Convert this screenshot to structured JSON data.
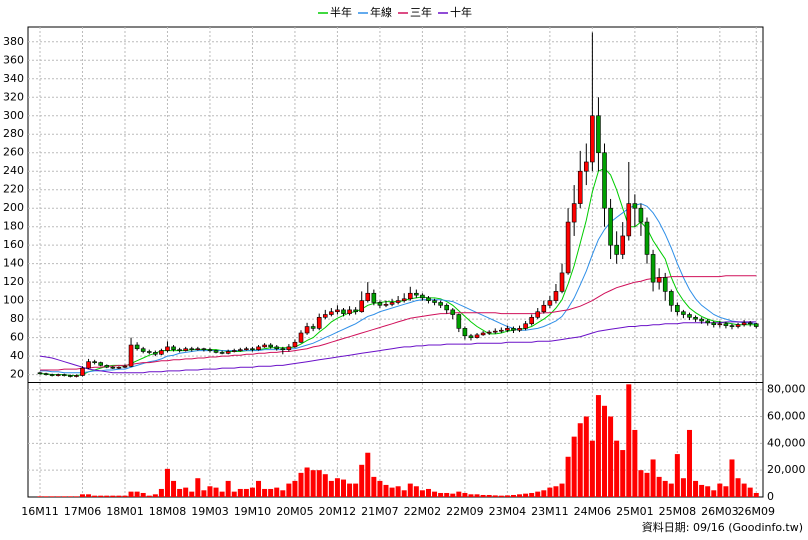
{
  "chart_data": {
    "type": "candlestick",
    "categories": [
      "16M11",
      null,
      null,
      null,
      null,
      null,
      null,
      "17M06",
      null,
      null,
      null,
      null,
      null,
      null,
      "18M01",
      null,
      null,
      null,
      null,
      null,
      null,
      "18M08",
      null,
      null,
      null,
      null,
      null,
      null,
      "19M03",
      null,
      null,
      null,
      null,
      null,
      null,
      "19M10",
      null,
      null,
      null,
      null,
      null,
      null,
      "20M05",
      null,
      null,
      null,
      null,
      null,
      null,
      "20M12",
      null,
      null,
      null,
      null,
      null,
      null,
      "21M07",
      null,
      null,
      null,
      null,
      null,
      null,
      "22M02",
      null,
      null,
      null,
      null,
      null,
      null,
      "22M09",
      null,
      null,
      null,
      null,
      null,
      null,
      "23M04",
      null,
      null,
      null,
      null,
      null,
      null,
      "23M11",
      null,
      null,
      null,
      null,
      null,
      null,
      "24M06",
      null,
      null,
      null,
      null,
      null,
      null,
      "25M01",
      null,
      null,
      null,
      null,
      null,
      null,
      "25M08",
      null,
      null,
      null,
      null,
      null,
      null,
      "26M03",
      null,
      null,
      null,
      null,
      null,
      "26M09"
    ],
    "open": [
      22,
      21,
      20,
      19,
      20,
      19,
      18,
      19,
      27,
      34,
      33,
      30,
      28,
      27,
      28,
      29,
      52,
      48,
      45,
      44,
      42,
      46,
      50,
      47,
      46,
      48,
      47,
      48,
      47,
      46,
      44,
      43,
      45,
      46,
      47,
      48,
      47,
      50,
      52,
      50,
      48,
      47,
      50,
      55,
      65,
      72,
      70,
      82,
      85,
      88,
      90,
      86,
      90,
      88,
      100,
      108,
      98,
      95,
      96,
      98,
      100,
      102,
      108,
      106,
      103,
      100,
      98,
      95,
      90,
      85,
      70,
      62,
      60,
      63,
      65,
      66,
      67,
      68,
      70,
      68,
      70,
      75,
      82,
      88,
      95,
      100,
      110,
      130,
      185,
      205,
      240,
      250,
      300,
      260,
      200,
      160,
      150,
      170,
      205,
      200,
      185,
      150,
      120,
      125,
      110,
      95,
      88,
      85,
      82,
      80,
      78,
      76,
      74,
      75,
      73,
      72,
      74,
      76,
      75
    ],
    "high": [
      23,
      22,
      21,
      21,
      21,
      20,
      20,
      29,
      37,
      36,
      34,
      31,
      29,
      29,
      31,
      60,
      55,
      50,
      47,
      46,
      48,
      56,
      52,
      49,
      50,
      50,
      50,
      49,
      49,
      47,
      46,
      47,
      48,
      49,
      50,
      50,
      52,
      54,
      54,
      52,
      50,
      53,
      58,
      68,
      76,
      75,
      86,
      90,
      92,
      95,
      92,
      94,
      93,
      110,
      120,
      112,
      100,
      100,
      102,
      105,
      108,
      115,
      112,
      108,
      105,
      102,
      100,
      97,
      92,
      86,
      72,
      64,
      65,
      67,
      68,
      70,
      71,
      73,
      72,
      73,
      78,
      85,
      92,
      100,
      105,
      118,
      140,
      200,
      225,
      262,
      270,
      390,
      320,
      270,
      210,
      175,
      185,
      250,
      215,
      205,
      190,
      155,
      135,
      130,
      112,
      98,
      90,
      87,
      84,
      82,
      80,
      78,
      78,
      77,
      75,
      76,
      79,
      78,
      76
    ],
    "low": [
      20,
      19,
      18,
      18,
      18,
      17,
      17,
      18,
      26,
      31,
      29,
      27,
      26,
      26,
      27,
      28,
      46,
      43,
      42,
      40,
      41,
      44,
      45,
      44,
      45,
      45,
      46,
      45,
      44,
      43,
      42,
      42,
      44,
      45,
      46,
      45,
      46,
      49,
      48,
      46,
      42,
      45,
      49,
      54,
      63,
      67,
      68,
      80,
      83,
      85,
      83,
      84,
      85,
      87,
      98,
      95,
      92,
      93,
      94,
      96,
      98,
      100,
      103,
      100,
      97,
      95,
      92,
      86,
      80,
      66,
      58,
      57,
      59,
      62,
      63,
      64,
      65,
      66,
      65,
      66,
      68,
      73,
      80,
      86,
      92,
      97,
      108,
      128,
      170,
      200,
      225,
      240,
      240,
      180,
      145,
      140,
      145,
      165,
      180,
      170,
      140,
      110,
      112,
      100,
      88,
      84,
      81,
      79,
      77,
      75,
      73,
      71,
      71,
      70,
      69,
      70,
      72,
      72,
      70
    ],
    "close": [
      21,
      20,
      19,
      20,
      19,
      18,
      19,
      27,
      34,
      33,
      30,
      28,
      27,
      28,
      29,
      52,
      48,
      45,
      44,
      42,
      46,
      50,
      47,
      46,
      48,
      47,
      48,
      47,
      46,
      44,
      43,
      45,
      46,
      47,
      48,
      47,
      50,
      52,
      50,
      48,
      47,
      50,
      55,
      65,
      72,
      70,
      82,
      85,
      88,
      90,
      86,
      90,
      88,
      100,
      108,
      98,
      95,
      96,
      98,
      100,
      102,
      108,
      106,
      103,
      100,
      98,
      95,
      90,
      85,
      70,
      62,
      60,
      63,
      65,
      66,
      67,
      68,
      70,
      68,
      70,
      75,
      82,
      88,
      95,
      100,
      110,
      130,
      185,
      205,
      240,
      250,
      300,
      260,
      200,
      160,
      150,
      170,
      205,
      200,
      185,
      150,
      120,
      125,
      110,
      95,
      88,
      85,
      82,
      80,
      78,
      76,
      74,
      75,
      73,
      72,
      74,
      76,
      75,
      72
    ],
    "up_color": "#ff0000",
    "down_color": "#00a000",
    "ylim": [
      12,
      396
    ],
    "yticks": [
      20,
      40,
      60,
      80,
      100,
      120,
      140,
      160,
      180,
      200,
      220,
      240,
      260,
      280,
      300,
      320,
      340,
      360,
      380
    ],
    "grid": true,
    "series": [
      {
        "name": "半年",
        "color": "#00cc00",
        "values": [
          21,
          21,
          20,
          20,
          20,
          19,
          19,
          20,
          23,
          25,
          27,
          29,
          30,
          30,
          29,
          32,
          35,
          38,
          41,
          43,
          46,
          46,
          46,
          46,
          46,
          47,
          47,
          47,
          47,
          47,
          46,
          45,
          45,
          45,
          46,
          46,
          47,
          48,
          49,
          49,
          49,
          49,
          50,
          53,
          57,
          60,
          66,
          71,
          77,
          81,
          84,
          87,
          88,
          91,
          95,
          97,
          98,
          99,
          99,
          99,
          100,
          102,
          103,
          104,
          103,
          103,
          102,
          99,
          95,
          89,
          83,
          77,
          72,
          68,
          64,
          64,
          65,
          67,
          68,
          69,
          70,
          72,
          76,
          80,
          85,
          92,
          101,
          118,
          138,
          162,
          187,
          218,
          240,
          243,
          236,
          220,
          200,
          180,
          180,
          185,
          178,
          165,
          155,
          145,
          125,
          110,
          100,
          92,
          87,
          83,
          80,
          78,
          77,
          76,
          75,
          74,
          74,
          74,
          74
        ]
      },
      {
        "name": "年線",
        "color": "#2f8fe8",
        "values": [
          24,
          24,
          23,
          23,
          22,
          22,
          22,
          22,
          23,
          24,
          24,
          25,
          25,
          26,
          26,
          28,
          30,
          32,
          34,
          35,
          37,
          40,
          41,
          43,
          44,
          45,
          46,
          46,
          46,
          46,
          46,
          46,
          46,
          46,
          46,
          46,
          46,
          47,
          47,
          47,
          47,
          48,
          48,
          50,
          52,
          54,
          57,
          60,
          63,
          66,
          69,
          72,
          75,
          79,
          83,
          85,
          88,
          90,
          92,
          94,
          96,
          98,
          100,
          101,
          101,
          101,
          101,
          100,
          99,
          96,
          93,
          90,
          87,
          84,
          81,
          78,
          75,
          72,
          70,
          68,
          68,
          69,
          70,
          72,
          75,
          78,
          83,
          92,
          103,
          117,
          132,
          150,
          166,
          177,
          185,
          190,
          195,
          200,
          203,
          205,
          202,
          195,
          185,
          172,
          157,
          140,
          125,
          112,
          102,
          95,
          90,
          85,
          82,
          80,
          78,
          77,
          76,
          76,
          75
        ]
      },
      {
        "name": "三年",
        "color": "#d0105a",
        "values": [
          25,
          25,
          25,
          25,
          26,
          26,
          26,
          27,
          27,
          28,
          28,
          29,
          29,
          30,
          30,
          31,
          32,
          33,
          33,
          34,
          35,
          35,
          36,
          36,
          37,
          37,
          38,
          38,
          39,
          39,
          40,
          40,
          41,
          41,
          42,
          42,
          43,
          43,
          44,
          44,
          45,
          45,
          46,
          47,
          48,
          50,
          51,
          53,
          55,
          57,
          59,
          61,
          63,
          65,
          67,
          69,
          71,
          73,
          75,
          77,
          79,
          81,
          82,
          83,
          84,
          85,
          86,
          86,
          87,
          87,
          87,
          87,
          87,
          87,
          87,
          87,
          86,
          86,
          86,
          86,
          86,
          86,
          86,
          87,
          87,
          88,
          89,
          90,
          92,
          94,
          97,
          100,
          104,
          108,
          111,
          114,
          116,
          118,
          120,
          121,
          123,
          124,
          125,
          125,
          126,
          126,
          126,
          126,
          126,
          126,
          126,
          126,
          126,
          127,
          127,
          127,
          127,
          127,
          127
        ]
      },
      {
        "name": "十年",
        "color": "#6a10c8",
        "values": [
          40,
          39,
          38,
          36,
          34,
          32,
          30,
          28,
          26,
          25,
          24,
          23,
          22,
          22,
          22,
          22,
          22,
          22,
          23,
          23,
          23,
          24,
          24,
          24,
          25,
          25,
          25,
          26,
          26,
          26,
          27,
          27,
          27,
          28,
          28,
          28,
          29,
          29,
          29,
          30,
          30,
          31,
          32,
          33,
          34,
          35,
          36,
          37,
          38,
          39,
          40,
          41,
          42,
          43,
          44,
          45,
          46,
          47,
          48,
          49,
          50,
          50,
          51,
          51,
          52,
          52,
          52,
          53,
          53,
          53,
          53,
          53,
          54,
          54,
          54,
          54,
          54,
          55,
          55,
          55,
          55,
          55,
          56,
          56,
          56,
          57,
          58,
          59,
          60,
          61,
          63,
          65,
          67,
          68,
          69,
          70,
          71,
          72,
          72,
          73,
          73,
          74,
          74,
          75,
          75,
          75,
          76,
          76,
          76,
          76,
          76,
          76,
          76,
          77,
          77,
          77,
          77,
          77,
          77
        ]
      }
    ],
    "volume": {
      "color": "#ff0000",
      "values": [
        500,
        500,
        500,
        500,
        500,
        500,
        500,
        2000,
        2000,
        1000,
        1000,
        1000,
        1000,
        1000,
        1000,
        4000,
        4000,
        3000,
        1000,
        2000,
        6000,
        21000,
        12000,
        6000,
        7000,
        4000,
        14000,
        5000,
        8000,
        7000,
        4000,
        12000,
        4000,
        6000,
        6000,
        7000,
        12000,
        6000,
        6000,
        7000,
        5000,
        10000,
        12000,
        18000,
        22000,
        20000,
        20000,
        17000,
        12000,
        14000,
        13000,
        10000,
        10000,
        24000,
        33000,
        15000,
        12000,
        9000,
        7000,
        8000,
        5000,
        10000,
        8000,
        5000,
        6000,
        4000,
        3000,
        3000,
        2500,
        4000,
        3000,
        2000,
        2000,
        1500,
        1500,
        1200,
        1000,
        1200,
        1500,
        2000,
        2500,
        3000,
        4000,
        5000,
        7000,
        8000,
        10000,
        30000,
        45000,
        55000,
        60000,
        42000,
        76000,
        68000,
        60000,
        42000,
        35000,
        84000,
        50000,
        20000,
        18000,
        28000,
        15000,
        12000,
        10000,
        32000,
        14000,
        50000,
        12000,
        9000,
        8000,
        5000,
        10000,
        8000,
        28000,
        14000,
        10000,
        7000,
        3000
      ],
      "ylim": [
        0,
        85000
      ],
      "yticks": [
        0,
        {
          "value": 20000,
          "label": "20,000"
        },
        {
          "value": 40000,
          "label": "40,000"
        },
        {
          "value": 60000,
          "label": "60,000"
        },
        {
          "value": 80000,
          "label": "80,000"
        }
      ]
    },
    "footnote": "資料日期: 09/16  (Goodinfo.tw)"
  }
}
